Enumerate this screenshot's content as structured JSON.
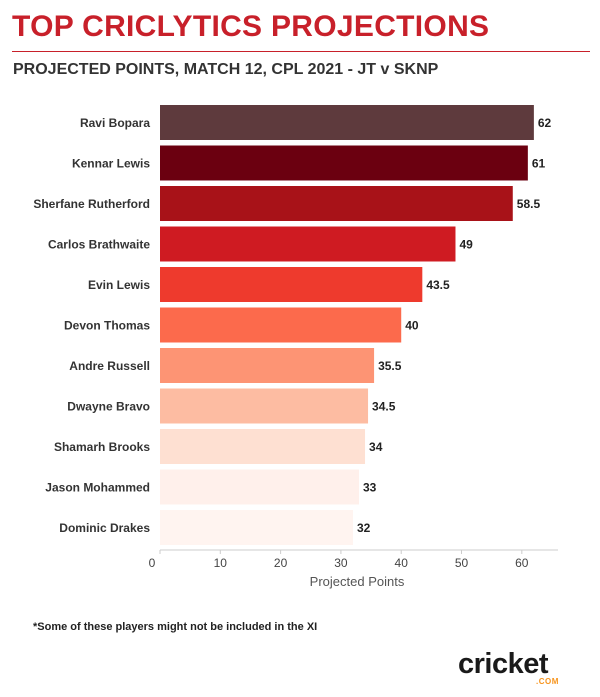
{
  "header": {
    "title": "TOP CRICLYTICS PROJECTIONS",
    "subtitle": "PROJECTED POINTS, MATCH 12, CPL 2021 - JT v SKNP"
  },
  "chart_data": {
    "type": "bar",
    "orientation": "horizontal",
    "categories": [
      "Ravi Bopara",
      "Kennar Lewis",
      "Sherfane Rutherford",
      "Carlos Brathwaite",
      "Evin Lewis",
      "Devon Thomas",
      "Andre Russell",
      "Dwayne Bravo",
      "Shamarh Brooks",
      "Jason Mohammed",
      "Dominic Drakes"
    ],
    "values": [
      62,
      61,
      58.5,
      49,
      43.5,
      40,
      35.5,
      34.5,
      34,
      33,
      32
    ],
    "value_labels": [
      "62",
      "61",
      "58.5",
      "49",
      "43.5",
      "40",
      "35.5",
      "34.5",
      "34",
      "33",
      "32"
    ],
    "colors": [
      "#5e3a3d",
      "#6b0010",
      "#a81218",
      "#cf1b22",
      "#ee3a2d",
      "#fc6a4c",
      "#fd9474",
      "#fdbca2",
      "#fee0d2",
      "#fff0eb",
      "#fff4f0"
    ],
    "xlabel": "Projected Points",
    "xlim": [
      0,
      66
    ],
    "xticks": [
      0,
      10,
      20,
      30,
      40,
      50,
      60
    ],
    "grid": false,
    "legend": "none"
  },
  "footnote": "*Some of these players might not be included in the XI",
  "logo": {
    "text": "cricket",
    "dotcom": ".COM",
    "accent_color": "#f7941d"
  }
}
